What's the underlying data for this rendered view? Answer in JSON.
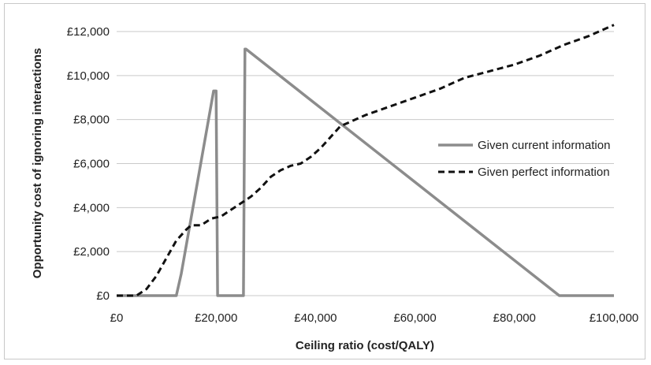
{
  "chart_data": {
    "type": "line",
    "xlabel": "Ceiling ratio (cost/QALY)",
    "ylabel": "Opportunity cost of ignoring interactions",
    "xlim": [
      0,
      100000
    ],
    "ylim": [
      0,
      12000
    ],
    "x_ticks": [
      0,
      20000,
      40000,
      60000,
      80000,
      100000
    ],
    "x_tick_labels": [
      "£0",
      "£20,000",
      "£40,000",
      "£60,000",
      "£80,000",
      "£100,000"
    ],
    "y_ticks": [
      0,
      2000,
      4000,
      6000,
      8000,
      10000,
      12000
    ],
    "y_tick_labels": [
      "£0",
      "£2,000",
      "£4,000",
      "£6,000",
      "£8,000",
      "£10,000",
      "£12,000"
    ],
    "grid": "horizontal",
    "legend_position": "right",
    "series": [
      {
        "name": "Given current information",
        "style": "solid",
        "color": "#8c8c8c",
        "x": [
          0,
          12000,
          13000,
          19500,
          20000,
          20300,
          20500,
          25500,
          25800,
          26000,
          89000,
          90000,
          100000
        ],
        "y": [
          0,
          0,
          1000,
          9300,
          9300,
          0,
          0,
          0,
          11200,
          11200,
          0,
          0,
          0
        ]
      },
      {
        "name": "Given perfect information",
        "style": "dashed",
        "color": "#111111",
        "x": [
          0,
          4000,
          6000,
          8000,
          10000,
          12000,
          14000,
          15000,
          17000,
          19000,
          21000,
          23000,
          25000,
          27000,
          29000,
          31000,
          33000,
          35000,
          37000,
          39000,
          41000,
          43000,
          45000,
          47000,
          50000,
          55000,
          60000,
          65000,
          70000,
          75000,
          80000,
          85000,
          90000,
          95000,
          100000
        ],
        "y": [
          0,
          0,
          300,
          900,
          1700,
          2500,
          3000,
          3200,
          3200,
          3500,
          3600,
          3900,
          4200,
          4500,
          4900,
          5400,
          5700,
          5900,
          6000,
          6300,
          6700,
          7200,
          7700,
          7900,
          8200,
          8600,
          9000,
          9400,
          9900,
          10200,
          10500,
          10900,
          11400,
          11800,
          12300
        ]
      }
    ]
  }
}
